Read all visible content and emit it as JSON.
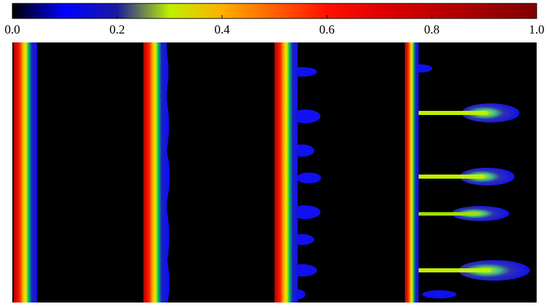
{
  "chart_data": {
    "type": "colorbar",
    "xlim": [
      0,
      1
    ],
    "xticks": [
      {
        "value": 0,
        "label": "0.0"
      },
      0.2,
      0.4,
      0.6,
      0.8,
      {
        "value": 1,
        "label": "1.0"
      }
    ],
    "colormap": [
      "#000000",
      "#0000ff",
      "#1a1aa0",
      "#c0f000",
      "#ffb000",
      "#ff6000",
      "#ff1000",
      "#e00000",
      "#c00000",
      "#a00000",
      "#800000"
    ]
  }
}
